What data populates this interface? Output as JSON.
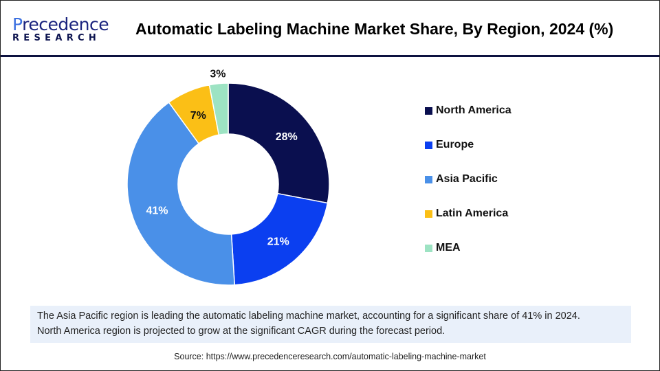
{
  "logo": {
    "line1a": "P",
    "line1b": "recedence",
    "line2": "RESEARCH"
  },
  "title": "Automatic Labeling Machine Market Share, By Region, 2024 (%)",
  "chart_data": {
    "type": "pie",
    "donut": true,
    "categories": [
      "North America",
      "Europe",
      "Asia Pacific",
      "Latin America",
      "MEA"
    ],
    "values": [
      28,
      21,
      41,
      7,
      3
    ],
    "labels": [
      "28%",
      "21%",
      "41%",
      "7%",
      "3%"
    ],
    "colors": [
      "#0a0f4f",
      "#0b3ff0",
      "#4a90e8",
      "#fbbf16",
      "#9de3c3"
    ],
    "label_colors": [
      "#ffffff",
      "#ffffff",
      "#ffffff",
      "#111111",
      "#111111"
    ],
    "legend_position": "right"
  },
  "note": {
    "line1": "The Asia Pacific region is leading the automatic labeling machine market, accounting for a significant share of 41% in 2024.",
    "line2": "North America region is projected to grow at the significant CAGR during the forecast period."
  },
  "source": "Source: https://www.precedenceresearch.com/automatic-labeling-machine-market"
}
